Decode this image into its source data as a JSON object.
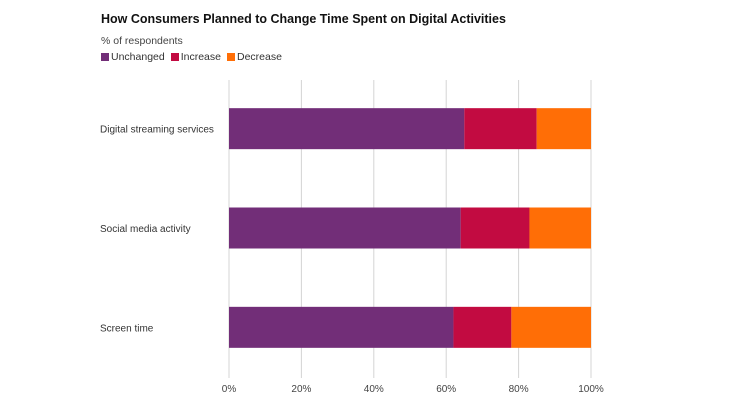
{
  "chart_data": {
    "type": "bar",
    "orientation": "horizontal",
    "stacked": true,
    "title": "How Consumers Planned to Change Time Spent on Digital Activities",
    "subtitle": "% of respondents",
    "categories": [
      "Digital streaming services",
      "Social media activity",
      "Screen time"
    ],
    "series": [
      {
        "name": "Unchanged",
        "color": "#722E78",
        "values": [
          65,
          64,
          62
        ]
      },
      {
        "name": "Increase",
        "color": "#C20B41",
        "values": [
          20,
          19,
          16
        ]
      },
      {
        "name": "Decrease",
        "color": "#FF6E06",
        "values": [
          15,
          17,
          22
        ]
      }
    ],
    "xlim": [
      0,
      100
    ],
    "xticks": [
      "0%",
      "20%",
      "40%",
      "60%",
      "80%",
      "100%"
    ],
    "grid": true,
    "legend_position": "top-left"
  }
}
